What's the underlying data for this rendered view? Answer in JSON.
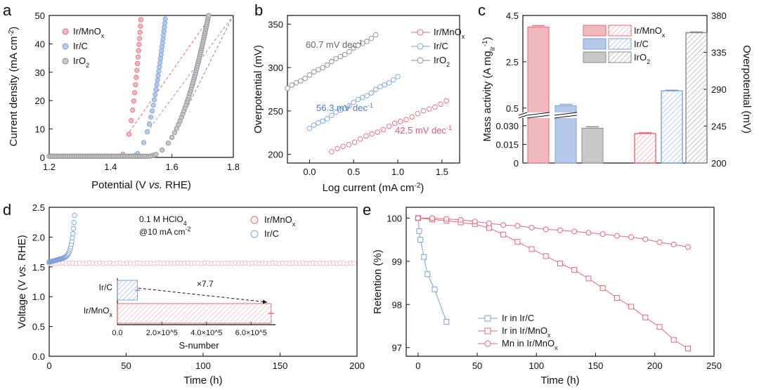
{
  "colors": {
    "ir_mno": "#e8677a",
    "ir_c": "#7c9fd6",
    "iro2": "#8a8a8a",
    "ir_mno_light": "#f2b8c0",
    "ir_c_light": "#b7c9ea",
    "iro2_light": "#c8c8c8"
  },
  "chart_data": [
    {
      "panel": "a",
      "type": "scatter",
      "xlabel": "Potential (V vs. RHE)",
      "ylabel": "Current density (mA cm-2)",
      "xlim": [
        1.2,
        1.8
      ],
      "ylim": [
        0,
        50
      ],
      "xticks": [
        "1.2",
        "1.4",
        "1.6",
        "1.8"
      ],
      "yticks": [
        "0",
        "10",
        "20",
        "30",
        "40",
        "50"
      ],
      "legend": [
        "Ir/MnOx",
        "Ir/C",
        "IrO2"
      ],
      "series": [
        {
          "name": "Ir/MnOx",
          "onset": 1.43,
          "end": 1.5
        },
        {
          "name": "Ir/C",
          "onset": 1.47,
          "end": 1.58
        },
        {
          "name": "IrO2",
          "onset": 1.52,
          "end": 1.72
        }
      ]
    },
    {
      "panel": "b",
      "type": "scatter",
      "xlabel": "Log current (mA cm-2)",
      "ylabel": "Overpotential (mV)",
      "xlim": [
        -0.25,
        1.7
      ],
      "ylim": [
        190,
        360
      ],
      "xticks": [
        "0.0",
        "0.5",
        "1.0",
        "1.5"
      ],
      "yticks": [
        "200",
        "250",
        "300",
        "350"
      ],
      "legend": [
        "Ir/MnOx",
        "Ir/C",
        "IrO2"
      ],
      "annotations": [
        "60.7 mV dec-1",
        "56.3 mV dec-1",
        "42.5 mV dec-1"
      ],
      "series": [
        {
          "name": "IrO2",
          "x": [
            -0.25,
            0.75
          ],
          "y": [
            276,
            337
          ]
        },
        {
          "name": "Ir/C",
          "x": [
            0.0,
            1.0
          ],
          "y": [
            230,
            289
          ]
        },
        {
          "name": "Ir/MnOx",
          "x": [
            0.25,
            1.55
          ],
          "y": [
            203,
            261
          ]
        }
      ]
    },
    {
      "panel": "c",
      "type": "bar",
      "ylabel_left": "Mass activity (A mgIr-1)",
      "ylabel_right": "Overpotential (mV)",
      "yticks_left": [
        "0",
        "0.015",
        "0.030",
        "0.5",
        "2.5",
        "4.5"
      ],
      "yticks_right": [
        "200",
        "245",
        "290",
        "335",
        "380"
      ],
      "legend": [
        "Ir/MnOx",
        "Ir/C",
        "IrO2"
      ],
      "mass_activity": {
        "Ir/MnOx": 4.0,
        "Ir/C": 0.6,
        "IrO2": 0.028
      },
      "overpotential": {
        "Ir/MnOx": 236,
        "Ir/C": 288,
        "IrO2": 359
      }
    },
    {
      "panel": "d",
      "type": "scatter",
      "xlabel": "Time (h)",
      "ylabel": "Voltage (V vs. RHE)",
      "xlim": [
        0,
        200
      ],
      "ylim": [
        0,
        2.5
      ],
      "xticks": [
        "0",
        "50",
        "100",
        "150",
        "200"
      ],
      "yticks": [
        "0.0",
        "0.5",
        "1.0",
        "1.5",
        "2.0",
        "2.5"
      ],
      "conditions": [
        "0.1 M HClO4",
        "@10 mA cm-2"
      ],
      "legend": [
        "Ir/MnOx",
        "Ir/C"
      ],
      "series": [
        {
          "name": "Ir/MnOx",
          "voltage": 1.56,
          "duration_h": 200
        },
        {
          "name": "Ir/C",
          "voltage_start": 1.58,
          "failure_h": 17
        }
      ],
      "inset": {
        "type": "bar",
        "xlabel": "S-number",
        "xticks": [
          "0.0",
          "2.0×10^5",
          "4.0×10^5",
          "6.0×10^5"
        ],
        "categories": [
          "Ir/C",
          "Ir/MnOx"
        ],
        "values": [
          90000,
          690000
        ],
        "annotation": "×7.7"
      }
    },
    {
      "panel": "e",
      "type": "line",
      "xlabel": "Time (h)",
      "ylabel": "Retention (%)",
      "xlim": [
        -10,
        250
      ],
      "ylim": [
        96.8,
        100.25
      ],
      "xticks": [
        "0",
        "50",
        "100",
        "150",
        "200",
        "250"
      ],
      "yticks": [
        "97",
        "98",
        "99",
        "100"
      ],
      "legend": [
        "Ir in Ir/C",
        "Ir in Ir/MnOx",
        "Mn in Ir/MnOx"
      ],
      "series": [
        {
          "name": "Ir in Ir/C",
          "x": [
            0,
            1,
            2,
            5,
            8,
            14,
            24
          ],
          "y": [
            100,
            99.7,
            99.5,
            99.1,
            98.7,
            98.35,
            97.6
          ]
        },
        {
          "name": "Ir in Ir/MnOx",
          "x": [
            0,
            12,
            24,
            36,
            48,
            60,
            72,
            84,
            96,
            108,
            120,
            132,
            144,
            156,
            168,
            180,
            192,
            204,
            216,
            228
          ],
          "y": [
            100,
            99.97,
            99.94,
            99.9,
            99.86,
            99.77,
            99.62,
            99.45,
            99.28,
            99.12,
            98.95,
            98.8,
            98.6,
            98.38,
            98.15,
            97.95,
            97.7,
            97.48,
            97.18,
            96.98
          ]
        },
        {
          "name": "Mn in Ir/MnOx",
          "x": [
            0,
            12,
            24,
            36,
            48,
            60,
            72,
            84,
            96,
            108,
            120,
            132,
            144,
            156,
            168,
            180,
            192,
            204,
            216,
            228
          ],
          "y": [
            100,
            100,
            99.98,
            99.96,
            99.92,
            99.88,
            99.84,
            99.82,
            99.78,
            99.74,
            99.72,
            99.69,
            99.66,
            99.63,
            99.59,
            99.56,
            99.51,
            99.44,
            99.39,
            99.33
          ]
        }
      ]
    }
  ]
}
